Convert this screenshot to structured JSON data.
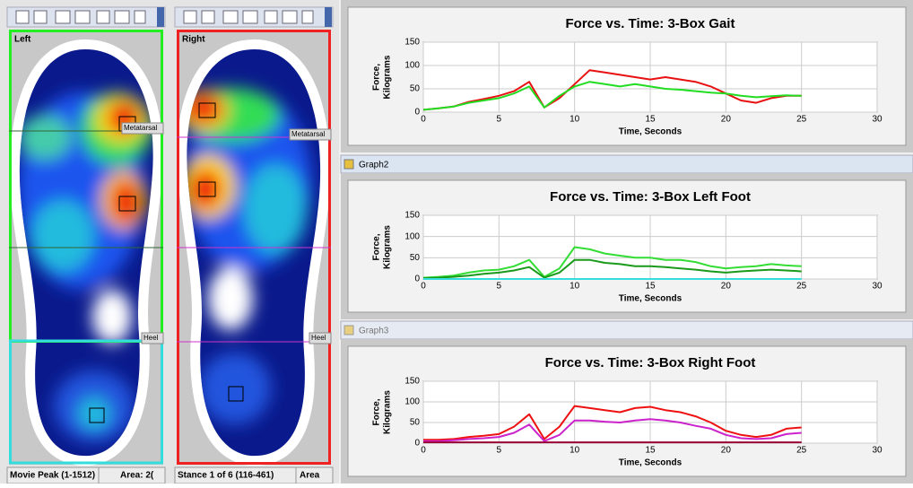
{
  "panels": [
    {
      "label": "Left",
      "regions": [
        "Metatarsal",
        "Heel"
      ],
      "status": [
        "Movie Peak (1-1512)",
        "Area: 2("
      ]
    },
    {
      "label": "Right",
      "regions": [
        "Metatarsal",
        "Heel"
      ],
      "status": [
        "Stance 1 of 6 (116-461)",
        "Area"
      ]
    }
  ],
  "windows": [
    "Graph2",
    "Graph3"
  ],
  "graphs": [
    {
      "type": "line",
      "title": "Force vs. Time: 3-Box Gait",
      "ylabel": [
        "Force,",
        "Kilograms"
      ],
      "xlabel": "Time, Seconds",
      "xlim": [
        0,
        30
      ],
      "ylim": [
        0,
        150
      ],
      "xticks": [
        0,
        5,
        10,
        15,
        20,
        25,
        30
      ],
      "yticks": [
        0,
        50,
        100,
        150
      ],
      "grid": true,
      "x": [
        0,
        1,
        2,
        3,
        4,
        5,
        6,
        7,
        8,
        9,
        10,
        11,
        12,
        13,
        14,
        15,
        16,
        17,
        18,
        19,
        20,
        21,
        22,
        23,
        24,
        25
      ],
      "series": [
        {
          "color": "#e81010",
          "values": [
            5,
            8,
            12,
            22,
            28,
            35,
            45,
            65,
            10,
            30,
            60,
            90,
            85,
            80,
            75,
            70,
            75,
            70,
            65,
            55,
            40,
            25,
            20,
            30,
            35,
            35
          ]
        },
        {
          "color": "#22dd22",
          "values": [
            5,
            8,
            12,
            20,
            25,
            30,
            40,
            55,
            10,
            35,
            55,
            65,
            60,
            55,
            60,
            55,
            50,
            48,
            45,
            42,
            40,
            35,
            32,
            34,
            36,
            35
          ]
        }
      ]
    },
    {
      "type": "line",
      "title": "Force vs. Time: 3-Box Left Foot",
      "ylabel": [
        "Force,",
        "Kilograms"
      ],
      "xlabel": "Time, Seconds",
      "xlim": [
        0,
        30
      ],
      "ylim": [
        0,
        150
      ],
      "xticks": [
        0,
        5,
        10,
        15,
        20,
        25,
        30
      ],
      "yticks": [
        0,
        50,
        100,
        150
      ],
      "grid": true,
      "x": [
        0,
        1,
        2,
        3,
        4,
        5,
        6,
        7,
        8,
        9,
        10,
        11,
        12,
        13,
        14,
        15,
        16,
        17,
        18,
        19,
        20,
        21,
        22,
        23,
        24,
        25
      ],
      "series": [
        {
          "color": "#33dd33",
          "values": [
            3,
            5,
            8,
            15,
            20,
            22,
            30,
            45,
            5,
            25,
            75,
            70,
            60,
            55,
            50,
            50,
            45,
            45,
            40,
            30,
            25,
            28,
            30,
            35,
            32,
            30
          ]
        },
        {
          "color": "#1a9a1a",
          "values": [
            2,
            3,
            5,
            8,
            12,
            15,
            20,
            28,
            3,
            15,
            45,
            45,
            38,
            35,
            30,
            30,
            28,
            25,
            22,
            18,
            15,
            18,
            20,
            22,
            20,
            18
          ]
        },
        {
          "color": "#33dddd",
          "values": [
            0,
            0,
            0,
            0,
            0,
            0,
            0,
            0,
            0,
            0,
            0,
            0,
            0,
            0,
            0,
            0,
            0,
            0,
            0,
            0,
            0,
            0,
            0,
            0,
            0,
            0
          ]
        }
      ]
    },
    {
      "type": "line",
      "title": "Force vs. Time: 3-Box Right Foot",
      "ylabel": [
        "Force,",
        "Kilograms"
      ],
      "xlabel": "Time, Seconds",
      "xlim": [
        0,
        30
      ],
      "ylim": [
        0,
        150
      ],
      "xticks": [
        0,
        5,
        10,
        15,
        20,
        25,
        30
      ],
      "yticks": [
        0,
        50,
        100,
        150
      ],
      "grid": true,
      "x": [
        0,
        1,
        2,
        3,
        4,
        5,
        6,
        7,
        8,
        9,
        10,
        11,
        12,
        13,
        14,
        15,
        16,
        17,
        18,
        19,
        20,
        21,
        22,
        23,
        24,
        25
      ],
      "series": [
        {
          "color": "#ee1111",
          "values": [
            8,
            8,
            10,
            15,
            18,
            22,
            40,
            70,
            10,
            40,
            90,
            85,
            80,
            75,
            85,
            88,
            80,
            75,
            65,
            50,
            30,
            20,
            15,
            20,
            35,
            38
          ]
        },
        {
          "color": "#cc22cc",
          "values": [
            5,
            5,
            7,
            10,
            12,
            15,
            25,
            45,
            5,
            20,
            55,
            55,
            52,
            50,
            55,
            58,
            55,
            50,
            42,
            35,
            20,
            12,
            10,
            12,
            22,
            25
          ]
        },
        {
          "color": "#990033",
          "values": [
            2,
            2,
            2,
            2,
            2,
            2,
            2,
            2,
            2,
            2,
            2,
            2,
            2,
            2,
            2,
            2,
            2,
            2,
            2,
            2,
            2,
            2,
            2,
            2,
            2,
            2
          ]
        }
      ]
    }
  ]
}
